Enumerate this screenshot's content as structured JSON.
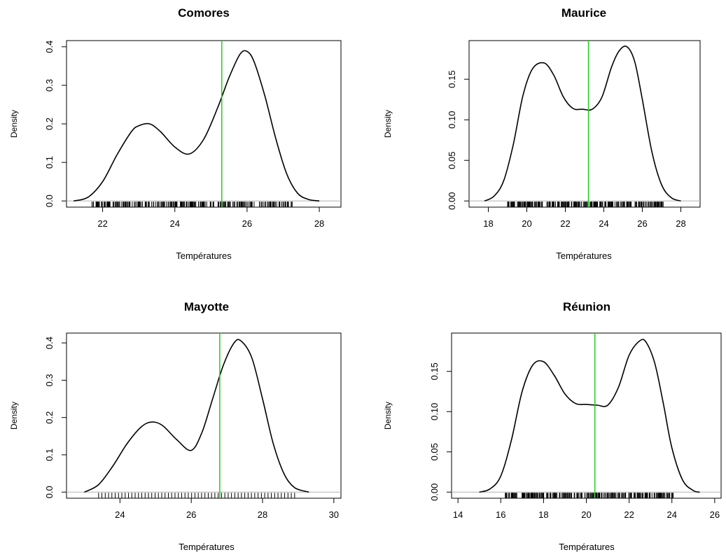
{
  "colors": {
    "density": "#000000",
    "vline": "#22cc22",
    "baseline": "#b0b0b0",
    "rug": "#000000"
  },
  "chart_data": [
    {
      "type": "line",
      "title": "Comores",
      "xlabel": "Températures",
      "ylabel": "Density",
      "xlim": [
        21,
        28.6
      ],
      "ylim": [
        0,
        0.4
      ],
      "xticks": [
        22,
        24,
        26,
        28
      ],
      "yticks": [
        0.0,
        0.1,
        0.2,
        0.3,
        0.4
      ],
      "ytick_labels": [
        "0.0",
        "0.1",
        "0.2",
        "0.3",
        "0.4"
      ],
      "ytick_decimals": 1,
      "vline_x": 25.3,
      "rug_range": [
        21.7,
        27.3
      ],
      "rug_density": "dense",
      "density": {
        "x": [
          21.2,
          21.6,
          22.0,
          22.4,
          22.8,
          23.0,
          23.3,
          23.6,
          24.0,
          24.4,
          24.8,
          25.2,
          25.5,
          25.8,
          26.0,
          26.2,
          26.5,
          26.8,
          27.1,
          27.4,
          27.7,
          28.0
        ],
        "y": [
          0.0,
          0.01,
          0.05,
          0.12,
          0.18,
          0.195,
          0.2,
          0.18,
          0.14,
          0.122,
          0.16,
          0.245,
          0.32,
          0.38,
          0.388,
          0.36,
          0.27,
          0.16,
          0.07,
          0.02,
          0.004,
          0.0
        ]
      }
    },
    {
      "type": "line",
      "title": "Maurice",
      "xlabel": "Températures",
      "ylabel": "Density",
      "xlim": [
        17,
        29
      ],
      "ylim": [
        0,
        0.19
      ],
      "xticks": [
        18,
        20,
        22,
        24,
        26,
        28
      ],
      "yticks": [
        0.0,
        0.05,
        0.1,
        0.15
      ],
      "ytick_labels": [
        "0.00",
        "0.05",
        "0.10",
        "0.15"
      ],
      "ytick_decimals": 2,
      "vline_x": 23.2,
      "rug_range": [
        19.0,
        27.1
      ],
      "rug_density": "dense",
      "density": {
        "x": [
          17.8,
          18.3,
          18.8,
          19.3,
          19.8,
          20.3,
          20.9,
          21.4,
          21.9,
          22.4,
          22.9,
          23.4,
          23.9,
          24.4,
          24.8,
          25.2,
          25.6,
          26.0,
          26.5,
          27.0,
          27.5,
          28.0
        ],
        "y": [
          0.0,
          0.006,
          0.025,
          0.07,
          0.13,
          0.163,
          0.17,
          0.155,
          0.128,
          0.114,
          0.113,
          0.113,
          0.128,
          0.165,
          0.185,
          0.19,
          0.172,
          0.125,
          0.06,
          0.02,
          0.004,
          0.0
        ]
      }
    },
    {
      "type": "line",
      "title": "Mayotte",
      "xlabel": "Températures",
      "ylabel": "Density",
      "xlim": [
        22.5,
        30.2
      ],
      "ylim": [
        0,
        0.41
      ],
      "xticks": [
        24,
        26,
        28,
        30
      ],
      "yticks": [
        0.0,
        0.1,
        0.2,
        0.3,
        0.4
      ],
      "ytick_labels": [
        "0.0",
        "0.1",
        "0.2",
        "0.3",
        "0.4"
      ],
      "ytick_decimals": 1,
      "vline_x": 26.8,
      "rug_range": [
        23.4,
        28.9
      ],
      "rug_density": "sparse",
      "density": {
        "x": [
          23.0,
          23.4,
          23.8,
          24.2,
          24.6,
          24.9,
          25.2,
          25.6,
          26.0,
          26.3,
          26.6,
          26.9,
          27.2,
          27.4,
          27.7,
          28.0,
          28.3,
          28.6,
          28.9,
          29.3
        ],
        "y": [
          0.0,
          0.02,
          0.07,
          0.13,
          0.175,
          0.188,
          0.178,
          0.14,
          0.112,
          0.16,
          0.25,
          0.34,
          0.4,
          0.405,
          0.36,
          0.25,
          0.13,
          0.05,
          0.012,
          0.0
        ]
      }
    },
    {
      "type": "line",
      "title": "Réunion",
      "xlabel": "Températures",
      "ylabel": "Density",
      "xlim": [
        13.7,
        26.3
      ],
      "ylim": [
        0,
        0.19
      ],
      "xticks": [
        14,
        16,
        18,
        20,
        22,
        24,
        26
      ],
      "yticks": [
        0.0,
        0.05,
        0.1,
        0.15
      ],
      "ytick_labels": [
        "0.00",
        "0.05",
        "0.10",
        "0.15"
      ],
      "ytick_decimals": 2,
      "vline_x": 20.4,
      "rug_range": [
        16.2,
        24.1
      ],
      "rug_density": "dense",
      "density": {
        "x": [
          15.0,
          15.5,
          16.0,
          16.5,
          17.0,
          17.5,
          18.0,
          18.5,
          19.0,
          19.5,
          20.0,
          20.5,
          21.0,
          21.5,
          22.0,
          22.5,
          22.8,
          23.2,
          23.6,
          24.0,
          24.5,
          25.0,
          25.3
        ],
        "y": [
          0.0,
          0.004,
          0.02,
          0.065,
          0.125,
          0.158,
          0.162,
          0.145,
          0.122,
          0.11,
          0.109,
          0.108,
          0.108,
          0.13,
          0.17,
          0.188,
          0.186,
          0.16,
          0.11,
          0.055,
          0.015,
          0.002,
          0.0
        ]
      }
    }
  ]
}
